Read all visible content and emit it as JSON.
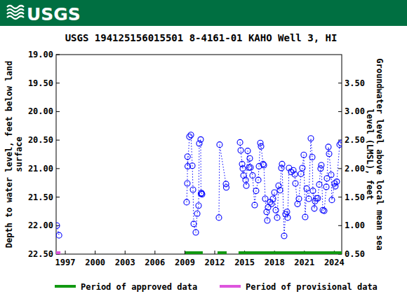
{
  "logo": "USGS",
  "chart_data": {
    "type": "line",
    "title": "USGS 194125156015501 8-4161-01 KAHO Well 3, HI",
    "ylabel": [
      "Depth to water level, feet below land",
      "surface"
    ],
    "y2label": [
      "Groundwater level above local mean sea",
      "level (LMSL), feet"
    ],
    "xlim": [
      1996.08,
      2024.75
    ],
    "xticks": [
      1997,
      2000,
      2003,
      2006,
      2009,
      2012,
      2015,
      2018,
      2021,
      2024
    ],
    "ylim": [
      22.5,
      19.0
    ],
    "yticks": [
      {
        "value": 19.0,
        "label": "19.00"
      },
      {
        "value": 19.5,
        "label": "19.50"
      },
      {
        "value": 20.0,
        "label": "20.00"
      },
      {
        "value": 20.5,
        "label": "20.50"
      },
      {
        "value": 21.0,
        "label": "21.00"
      },
      {
        "value": 21.5,
        "label": "21.50"
      },
      {
        "value": 22.0,
        "label": "22.00"
      },
      {
        "value": 22.5,
        "label": "22.50"
      }
    ],
    "y2lim": [
      0.5,
      4.0
    ],
    "y2ticks": [
      {
        "value": 0.5,
        "label": "0.50"
      },
      {
        "value": 1.0,
        "label": "1.00"
      },
      {
        "value": 1.5,
        "label": "1.50"
      },
      {
        "value": 2.0,
        "label": "2.00"
      },
      {
        "value": 2.5,
        "label": "2.50"
      },
      {
        "value": 3.0,
        "label": "3.00"
      },
      {
        "value": 3.5,
        "label": "3.50"
      }
    ],
    "grid": false,
    "legend": "bottom",
    "series": [
      {
        "color": "#0000ff",
        "marker": "circle",
        "line_style": "dotted",
        "x": [
          1996.15,
          1996.37,
          null,
          2009.18,
          2009.25,
          2009.27,
          2009.29,
          2009.46,
          2009.61,
          2009.75,
          2009.82,
          2009.89,
          2010.1,
          2010.24,
          2010.38,
          2010.45,
          2010.59,
          2010.62,
          2010.68,
          2010.73,
          null,
          2012.42,
          2012.49,
          2013.13,
          2013.16,
          null,
          2014.54,
          2014.61,
          2014.75,
          2014.82,
          2014.89,
          2015.1,
          2015.17,
          2015.31,
          2015.45,
          2015.52,
          2015.59,
          2015.8,
          2016.01,
          2016.15,
          2016.37,
          2016.44,
          2016.58,
          2016.65,
          2016.86,
          2016.93,
          2017.07,
          2017.21,
          2017.28,
          2017.35,
          2017.56,
          2017.7,
          2017.85,
          2017.99,
          2018.13,
          2018.27,
          2018.41,
          2018.55,
          2018.69,
          2018.76,
          2018.97,
          2019.11,
          2019.25,
          2019.32,
          2019.46,
          2019.68,
          2019.89,
          2020.03,
          2020.1,
          2020.31,
          2020.45,
          2020.66,
          2020.8,
          2020.94,
          2021.08,
          2021.23,
          2021.44,
          2021.65,
          2021.79,
          2021.86,
          2022.0,
          2022.07,
          2022.21,
          2022.35,
          2022.49,
          2022.63,
          2022.7,
          2022.85,
          2022.99,
          2023.2,
          2023.27,
          2023.41,
          2023.48,
          2023.69,
          2023.76,
          2024.04,
          2024.11,
          2024.25,
          2024.54,
          2024.68
        ],
        "values": [
          22.0,
          22.17,
          null,
          21.59,
          21.26,
          20.79,
          20.96,
          20.44,
          20.41,
          20.95,
          21.37,
          21.97,
          22.12,
          21.79,
          21.65,
          20.56,
          20.49,
          21.44,
          21.43,
          21.45,
          null,
          21.86,
          20.58,
          21.27,
          21.33,
          null,
          20.54,
          20.68,
          20.92,
          21.0,
          21.12,
          21.2,
          21.3,
          20.69,
          20.98,
          20.82,
          20.98,
          21.12,
          21.64,
          21.39,
          21.2,
          20.96,
          20.55,
          20.61,
          20.92,
          20.94,
          21.53,
          21.76,
          21.91,
          21.68,
          21.59,
          21.62,
          21.53,
          21.42,
          21.73,
          21.86,
          21.3,
          21.38,
          20.99,
          20.92,
          22.18,
          21.8,
          21.76,
          21.86,
          20.99,
          21.06,
          21.03,
          21.1,
          21.26,
          21.62,
          21.53,
          21.09,
          20.99,
          20.76,
          21.85,
          21.35,
          21.53,
          20.47,
          20.8,
          21.39,
          21.7,
          21.57,
          21.52,
          21.52,
          21.28,
          21.0,
          20.94,
          21.73,
          21.74,
          21.32,
          21.17,
          20.62,
          20.74,
          21.11,
          21.55,
          21.26,
          21.31,
          21.23,
          20.58,
          20.55
        ]
      },
      {
        "name": "Period of approved data",
        "type": "period",
        "color": "#119911",
        "periods": [
          [
            2009.04,
            2010.8
          ],
          [
            2012.28,
            2013.2
          ],
          [
            2014.39,
            2024.75
          ]
        ]
      },
      {
        "name": "Period of provisional data",
        "type": "period",
        "color": "#dd55dd",
        "periods": [
          [
            1996.08,
            1996.51
          ]
        ]
      }
    ]
  }
}
